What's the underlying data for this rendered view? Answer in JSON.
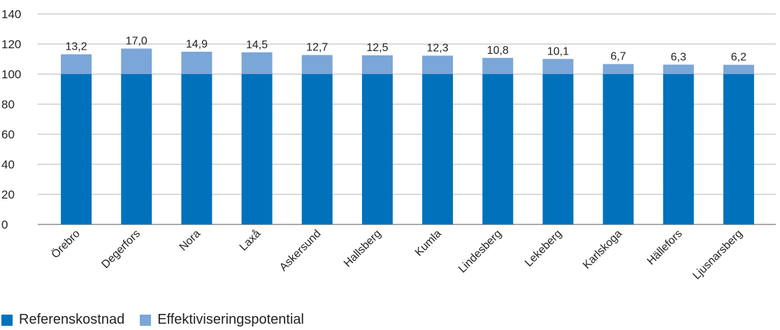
{
  "chart_data": {
    "type": "bar",
    "stacked": true,
    "categories": [
      "Örebro",
      "Degerfors",
      "Nora",
      "Laxå",
      "Askersund",
      "Hallsberg",
      "Kumla",
      "Lindesberg",
      "Lekeberg",
      "Karlskoga",
      "Hällefors",
      "Ljusnarsberg"
    ],
    "series": [
      {
        "name": "Referenskostnad",
        "color": "#0072bc",
        "values": [
          100,
          100,
          100,
          100,
          100,
          100,
          100,
          100,
          100,
          100,
          100,
          100
        ]
      },
      {
        "name": "Effektiviseringspotential",
        "color": "#7ba6d8",
        "values": [
          13.2,
          17.0,
          14.9,
          14.5,
          12.7,
          12.5,
          12.3,
          10.8,
          10.1,
          6.7,
          6.3,
          6.2
        ],
        "labels": [
          "13,2",
          "17,0",
          "14,9",
          "14,5",
          "12,7",
          "12,5",
          "12,3",
          "10,8",
          "10,1",
          "6,7",
          "6,3",
          "6,2"
        ]
      }
    ],
    "ylim": [
      0,
      140
    ],
    "yticks": [
      "0",
      "20",
      "40",
      "60",
      "80",
      "100",
      "120",
      "140"
    ],
    "grid": true,
    "legend_position": "bottom-left",
    "title": "",
    "xlabel": "",
    "ylabel": ""
  }
}
